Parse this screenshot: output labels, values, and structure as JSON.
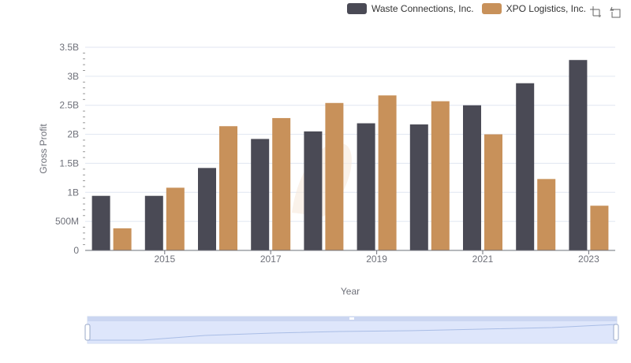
{
  "legend": {
    "items": [
      {
        "label": "Waste Connections, Inc.",
        "color": "#4a4a55"
      },
      {
        "label": "XPO Logistics, Inc.",
        "color": "#c8915a"
      }
    ]
  },
  "toolbar": {
    "icons": [
      "zoom-icon",
      "restore-icon"
    ]
  },
  "chart_data": {
    "type": "bar",
    "xlabel": "Year",
    "ylabel": "Gross Profit",
    "categories": [
      "2014",
      "2015",
      "2016",
      "2017",
      "2018",
      "2019",
      "2020",
      "2021",
      "2022",
      "2023"
    ],
    "x_tick_labels": [
      "2015",
      "2017",
      "2019",
      "2021",
      "2023"
    ],
    "y_tick_labels": [
      "0",
      "500M",
      "1B",
      "1.5B",
      "2B",
      "2.5B",
      "3B",
      "3.5B"
    ],
    "ylim": [
      0,
      3500000000
    ],
    "grid": true,
    "legend_position": "top-right",
    "series": [
      {
        "name": "Waste Connections, Inc.",
        "color": "#4a4a55",
        "values": [
          940000000,
          940000000,
          1420000000,
          1920000000,
          2050000000,
          2190000000,
          2170000000,
          2500000000,
          2880000000,
          3280000000
        ]
      },
      {
        "name": "XPO Logistics, Inc.",
        "color": "#c8915a",
        "values": [
          380000000,
          1080000000,
          2140000000,
          2280000000,
          2540000000,
          2670000000,
          2570000000,
          2000000000,
          1230000000,
          770000000
        ]
      }
    ]
  }
}
